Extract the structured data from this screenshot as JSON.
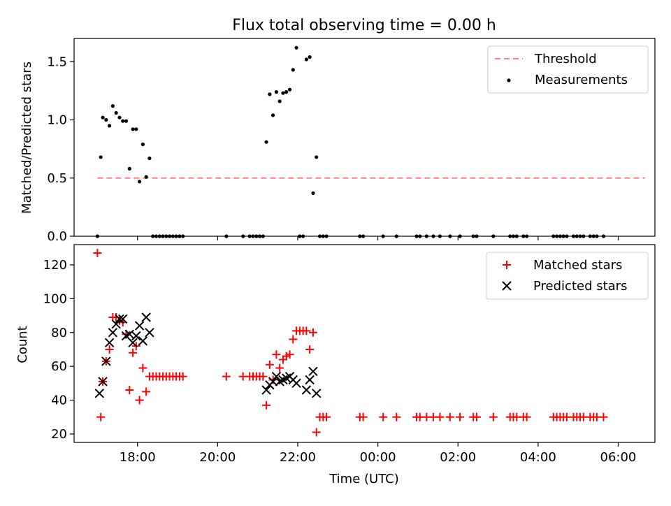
{
  "figure": {
    "title": "Flux total observing time = 0.00 h"
  },
  "colors": {
    "threshold": "#ff8080",
    "measurement": "#000000",
    "matched": "#ff0000",
    "predicted": "#000000"
  },
  "chart_data": [
    {
      "type": "scatter",
      "panel": "top",
      "title": "Flux total observing time = 0.00 h",
      "xlabel": "",
      "ylabel": "Matched/Predicted stars",
      "xlim": [
        "16:25",
        "06:55"
      ],
      "ylim": [
        0,
        1.7
      ],
      "yticks": [
        "0.0",
        "0.5",
        "1.0",
        "1.5"
      ],
      "grid": false,
      "legend_position": "top-right",
      "series": [
        {
          "name": "Threshold",
          "style": "dashed-line",
          "x": [
            "17:00",
            "23:00",
            "06:40"
          ],
          "y": [
            0.5,
            0.5,
            0.5
          ]
        },
        {
          "name": "Measurements",
          "style": "dot",
          "x": [
            "17:00",
            "17:05",
            "17:08",
            "17:13",
            "17:18",
            "17:23",
            "17:28",
            "17:33",
            "17:38",
            "17:43",
            "17:48",
            "17:53",
            "17:58",
            "18:03",
            "18:08",
            "18:13",
            "18:18",
            "18:23",
            "18:28",
            "18:33",
            "18:38",
            "18:43",
            "18:48",
            "18:53",
            "18:58",
            "19:03",
            "19:08",
            "20:13",
            "20:38",
            "20:48",
            "20:53",
            "20:58",
            "21:03",
            "21:08",
            "21:13",
            "21:18",
            "21:23",
            "21:28",
            "21:33",
            "21:38",
            "21:43",
            "21:48",
            "21:53",
            "21:58",
            "22:03",
            "22:08",
            "22:13",
            "22:18",
            "22:23",
            "22:28",
            "22:33",
            "22:38",
            "22:43",
            "23:33",
            "23:38",
            "24:08",
            "24:28",
            "24:58",
            "25:03",
            "25:13",
            "25:23",
            "25:33",
            "25:48",
            "26:03",
            "26:23",
            "26:28",
            "26:53",
            "27:18",
            "27:23",
            "27:28",
            "27:38",
            "27:43",
            "28:23",
            "28:28",
            "28:33",
            "28:38",
            "28:43",
            "28:53",
            "28:58",
            "29:03",
            "29:08",
            "29:18",
            "29:23",
            "29:28",
            "29:38"
          ],
          "values": [
            0.0,
            0.68,
            1.02,
            1.0,
            0.95,
            1.12,
            1.06,
            1.02,
            0.99,
            0.99,
            0.58,
            0.92,
            0.92,
            0.47,
            0.79,
            0.51,
            0.67,
            0.0,
            0.0,
            0.0,
            0.0,
            0.0,
            0.0,
            0.0,
            0.0,
            0.0,
            0.0,
            0.0,
            0.0,
            0.0,
            0.0,
            0.0,
            0.0,
            0.0,
            0.81,
            1.22,
            1.04,
            1.24,
            1.16,
            1.23,
            1.24,
            1.26,
            1.43,
            1.62,
            0.0,
            0.0,
            1.52,
            1.54,
            0.37,
            0.68,
            0.0,
            0.0,
            0.0,
            0.0,
            0.0,
            0.0,
            0.0,
            0.0,
            0.0,
            0.0,
            0.0,
            0.0,
            0.0,
            0.0,
            0.0,
            0.0,
            0.0,
            0.0,
            0.0,
            0.0,
            0.0,
            0.0,
            0.0,
            0.0,
            0.0,
            0.0,
            0.0,
            0.0,
            0.0,
            0.0,
            0.0,
            0.0,
            0.0,
            0.0,
            0.0
          ]
        }
      ]
    },
    {
      "type": "scatter",
      "panel": "bottom",
      "xlabel": "Time (UTC)",
      "ylabel": "Count",
      "xlim": [
        "16:25",
        "06:55"
      ],
      "ylim": [
        15,
        132
      ],
      "xticks": [
        "18:00",
        "20:00",
        "22:00",
        "00:00",
        "02:00",
        "04:00",
        "06:00"
      ],
      "yticks": [
        "20",
        "40",
        "60",
        "80",
        "100",
        "120"
      ],
      "grid": false,
      "legend_position": "top-right",
      "series": [
        {
          "name": "Matched stars",
          "marker": "plus",
          "x": [
            "17:00",
            "17:05",
            "17:08",
            "17:13",
            "17:18",
            "17:23",
            "17:28",
            "17:33",
            "17:38",
            "17:43",
            "17:48",
            "17:53",
            "17:58",
            "18:03",
            "18:08",
            "18:13",
            "18:18",
            "18:23",
            "18:28",
            "18:33",
            "18:38",
            "18:43",
            "18:48",
            "18:53",
            "18:58",
            "19:03",
            "19:08",
            "20:13",
            "20:38",
            "20:48",
            "20:53",
            "20:58",
            "21:03",
            "21:08",
            "21:13",
            "21:18",
            "21:23",
            "21:28",
            "21:33",
            "21:38",
            "21:43",
            "21:48",
            "21:53",
            "21:58",
            "22:03",
            "22:08",
            "22:13",
            "22:18",
            "22:23",
            "22:28",
            "22:33",
            "22:38",
            "22:43",
            "23:33",
            "23:38",
            "24:08",
            "24:28",
            "24:58",
            "25:03",
            "25:13",
            "25:23",
            "25:33",
            "25:48",
            "26:03",
            "26:23",
            "26:28",
            "26:53",
            "27:18",
            "27:23",
            "27:28",
            "27:38",
            "27:43",
            "28:23",
            "28:28",
            "28:33",
            "28:38",
            "28:43",
            "28:53",
            "28:58",
            "29:03",
            "29:08",
            "29:18",
            "29:23",
            "29:28",
            "29:38"
          ],
          "values": [
            127,
            30,
            51,
            63,
            70,
            89,
            89,
            87,
            86,
            79,
            46,
            68,
            72,
            40,
            59,
            45,
            54,
            54,
            54,
            54,
            54,
            54,
            54,
            54,
            54,
            54,
            54,
            54,
            54,
            54,
            54,
            54,
            54,
            54,
            37,
            61,
            52,
            67,
            59,
            64,
            66,
            67,
            76,
            81,
            81,
            81,
            81,
            70,
            80,
            21,
            30,
            30,
            30,
            30,
            30,
            30,
            30,
            30,
            30,
            30,
            30,
            30,
            30,
            30,
            30,
            30,
            30,
            30,
            30,
            30,
            30,
            30,
            30,
            30,
            30,
            30,
            30,
            30,
            30,
            30,
            30,
            30,
            30,
            30,
            30
          ]
        },
        {
          "name": "Predicted stars",
          "marker": "x",
          "x": [
            "17:03",
            "17:08",
            "17:13",
            "17:18",
            "17:23",
            "17:28",
            "17:33",
            "17:38",
            "17:43",
            "17:48",
            "17:53",
            "17:58",
            "18:03",
            "18:08",
            "18:13",
            "18:18",
            "21:13",
            "21:18",
            "21:23",
            "21:28",
            "21:33",
            "21:38",
            "21:43",
            "21:48",
            "21:53",
            "21:58",
            "22:03",
            "22:08",
            "22:13",
            "22:18",
            "22:23",
            "22:28"
          ],
          "values": [
            44,
            51,
            63,
            74,
            80,
            85,
            88,
            88,
            78,
            79,
            74,
            78,
            84,
            75,
            89,
            80,
            46,
            49,
            51,
            54,
            51,
            52,
            53,
            54,
            52,
            50,
            null,
            null,
            46,
            52,
            57,
            44
          ]
        }
      ]
    }
  ]
}
